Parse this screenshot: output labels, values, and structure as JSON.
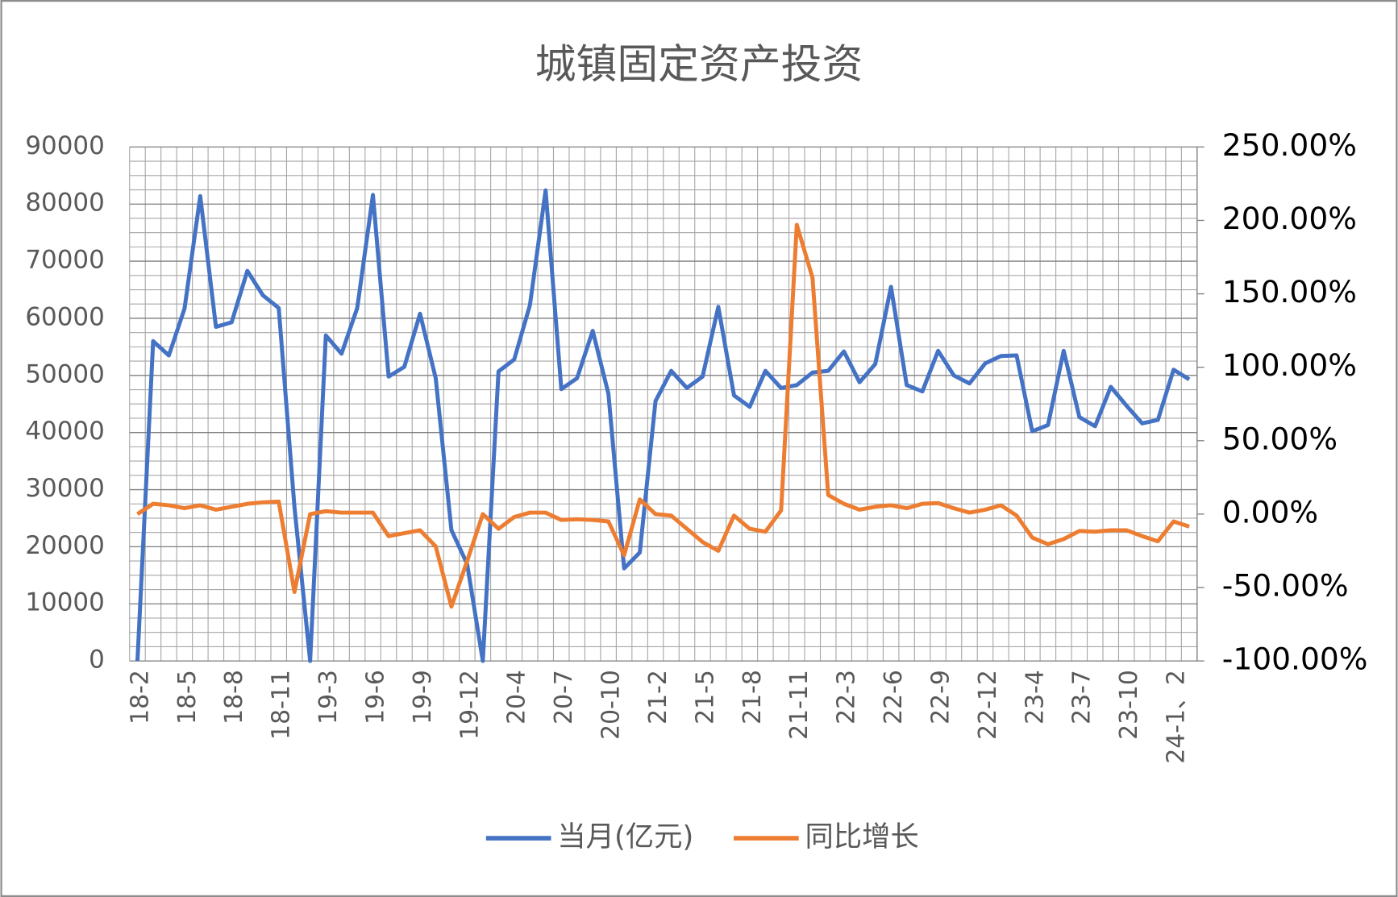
{
  "chart_data": {
    "type": "line",
    "title": "城镇固定资产投资",
    "categories": [
      "18-2",
      null,
      null,
      "18-5",
      null,
      null,
      "18-8",
      null,
      null,
      "18-11",
      null,
      null,
      "19-3",
      null,
      null,
      "19-6",
      null,
      null,
      "19-9",
      null,
      null,
      "19-12",
      null,
      null,
      "20-4",
      null,
      null,
      "20-7",
      null,
      null,
      "20-10",
      null,
      null,
      "21-2",
      null,
      null,
      "21-5",
      null,
      null,
      "21-8",
      null,
      null,
      "21-11",
      null,
      null,
      "22-3",
      null,
      null,
      "22-6",
      null,
      null,
      "22-9",
      null,
      null,
      "22-12",
      null,
      null,
      "23-4",
      null,
      null,
      "23-7",
      null,
      null,
      "23-10",
      null,
      null,
      "24-1、2",
      null
    ],
    "series": [
      {
        "name": "当月(亿元)",
        "color": "#4472c4",
        "axis": "y",
        "values": [
          0,
          56000,
          53500,
          61700,
          81400,
          58500,
          59300,
          68300,
          64000,
          61800,
          27000,
          0,
          57000,
          53800,
          61800,
          81600,
          49800,
          51500,
          60800,
          49500,
          22900,
          17000,
          0,
          50700,
          52800,
          62300,
          82400,
          47600,
          49500,
          57800,
          46800,
          16200,
          19000,
          45500,
          50800,
          47800,
          49800,
          62000,
          46500,
          44500,
          50800,
          47800,
          48300,
          50500,
          50800,
          54200,
          48800,
          52000,
          65500,
          48300,
          47200,
          54300,
          50000,
          48600,
          52100,
          53400,
          53500,
          40200,
          41300,
          54300,
          42700,
          41100,
          48000,
          44700,
          41600,
          42200,
          51000,
          49300
        ]
      },
      {
        "name": "同比增长",
        "color": "#ed7d31",
        "axis": "y2",
        "values": [
          0,
          7,
          6,
          4,
          6,
          3,
          5,
          7,
          8,
          8.5,
          -53,
          0,
          2,
          1,
          1,
          1,
          -15,
          -13,
          -11,
          -22,
          -63,
          -32,
          0,
          -10,
          -2,
          1,
          1,
          -4,
          -3.5,
          -4,
          -5,
          -28,
          10,
          0,
          -1,
          -10,
          -19,
          -25,
          -1,
          -10,
          -12,
          2.5,
          197,
          161,
          13,
          7,
          3,
          5,
          6,
          4,
          7,
          7.5,
          4,
          1,
          3,
          6,
          -1,
          -16,
          -20.5,
          -17,
          -11.5,
          -12,
          -11,
          -11,
          -15,
          -18.5,
          -5,
          -8.5
        ]
      }
    ],
    "ylim": [
      0,
      90000
    ],
    "yticks": [
      0,
      10000,
      20000,
      30000,
      40000,
      50000,
      60000,
      70000,
      80000,
      90000
    ],
    "y2lim": [
      -100,
      250
    ],
    "y2ticks": [
      {
        "value": -100,
        "label": "-100.00%"
      },
      {
        "value": -50,
        "label": "-50.00%"
      },
      {
        "value": 0,
        "label": "0.00%"
      },
      {
        "value": 50,
        "label": "50.00%"
      },
      {
        "value": 100,
        "label": "100.00%"
      },
      {
        "value": 150,
        "label": "150.00%"
      },
      {
        "value": 200,
        "label": "200.00%"
      },
      {
        "value": 250,
        "label": "250.00%"
      }
    ],
    "grid": true,
    "legend": "bottom"
  }
}
